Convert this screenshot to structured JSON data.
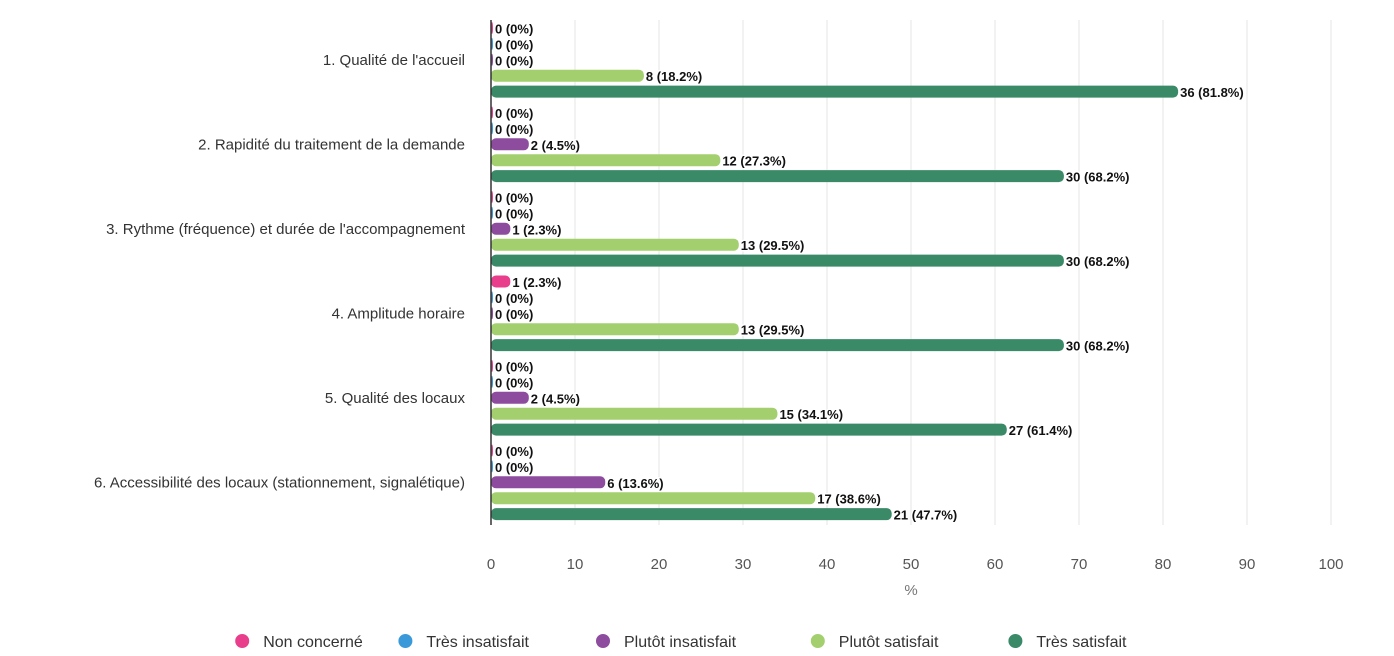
{
  "chart_data": {
    "type": "bar",
    "orientation": "horizontal",
    "categories": [
      "1. Qualité de l'accueil",
      "2. Rapidité du traitement de la demande",
      "3. Rythme (fréquence) et durée de l'accompagnement",
      "4. Amplitude horaire",
      "5. Qualité des locaux",
      "6. Accessibilité des locaux (stationnement, signalétique)"
    ],
    "series": [
      {
        "name": "Non concerné",
        "color": "#e83e8c",
        "values": [
          0,
          0,
          0,
          2.3,
          0,
          0
        ],
        "labels": [
          "0 (0%)",
          "0 (0%)",
          "0 (0%)",
          "1 (2.3%)",
          "0 (0%)",
          "0 (0%)"
        ]
      },
      {
        "name": "Très insatisfait",
        "color": "#3a9ad9",
        "values": [
          0,
          0,
          0,
          0,
          0,
          0
        ],
        "labels": [
          "0 (0%)",
          "0 (0%)",
          "0 (0%)",
          "0 (0%)",
          "0 (0%)",
          "0 (0%)"
        ]
      },
      {
        "name": "Plutôt insatisfait",
        "color": "#8e4c9e",
        "values": [
          0,
          4.5,
          2.3,
          0,
          4.5,
          13.6
        ],
        "labels": [
          "0 (0%)",
          "2 (4.5%)",
          "1 (2.3%)",
          "0 (0%)",
          "2 (4.5%)",
          "6 (13.6%)"
        ]
      },
      {
        "name": "Plutôt satisfait",
        "color": "#a3cf6f",
        "values": [
          18.2,
          27.3,
          29.5,
          29.5,
          34.1,
          38.6
        ],
        "labels": [
          "8 (18.2%)",
          "12 (27.3%)",
          "13 (29.5%)",
          "13 (29.5%)",
          "15 (34.1%)",
          "17 (38.6%)"
        ]
      },
      {
        "name": "Très satisfait",
        "color": "#3a8a68",
        "values": [
          81.8,
          68.2,
          68.2,
          68.2,
          61.4,
          47.7
        ],
        "labels": [
          "36 (81.8%)",
          "30 (68.2%)",
          "30 (68.2%)",
          "30 (68.2%)",
          "27 (61.4%)",
          "21 (47.7%)"
        ]
      }
    ],
    "xlim": [
      0,
      100
    ],
    "xticks": [
      "0",
      "10",
      "20",
      "30",
      "40",
      "50",
      "60",
      "70",
      "80",
      "90",
      "100"
    ],
    "xlabel": "%",
    "ylabel": "",
    "title": "",
    "grid": "vertical",
    "legend": "bottom-center"
  }
}
